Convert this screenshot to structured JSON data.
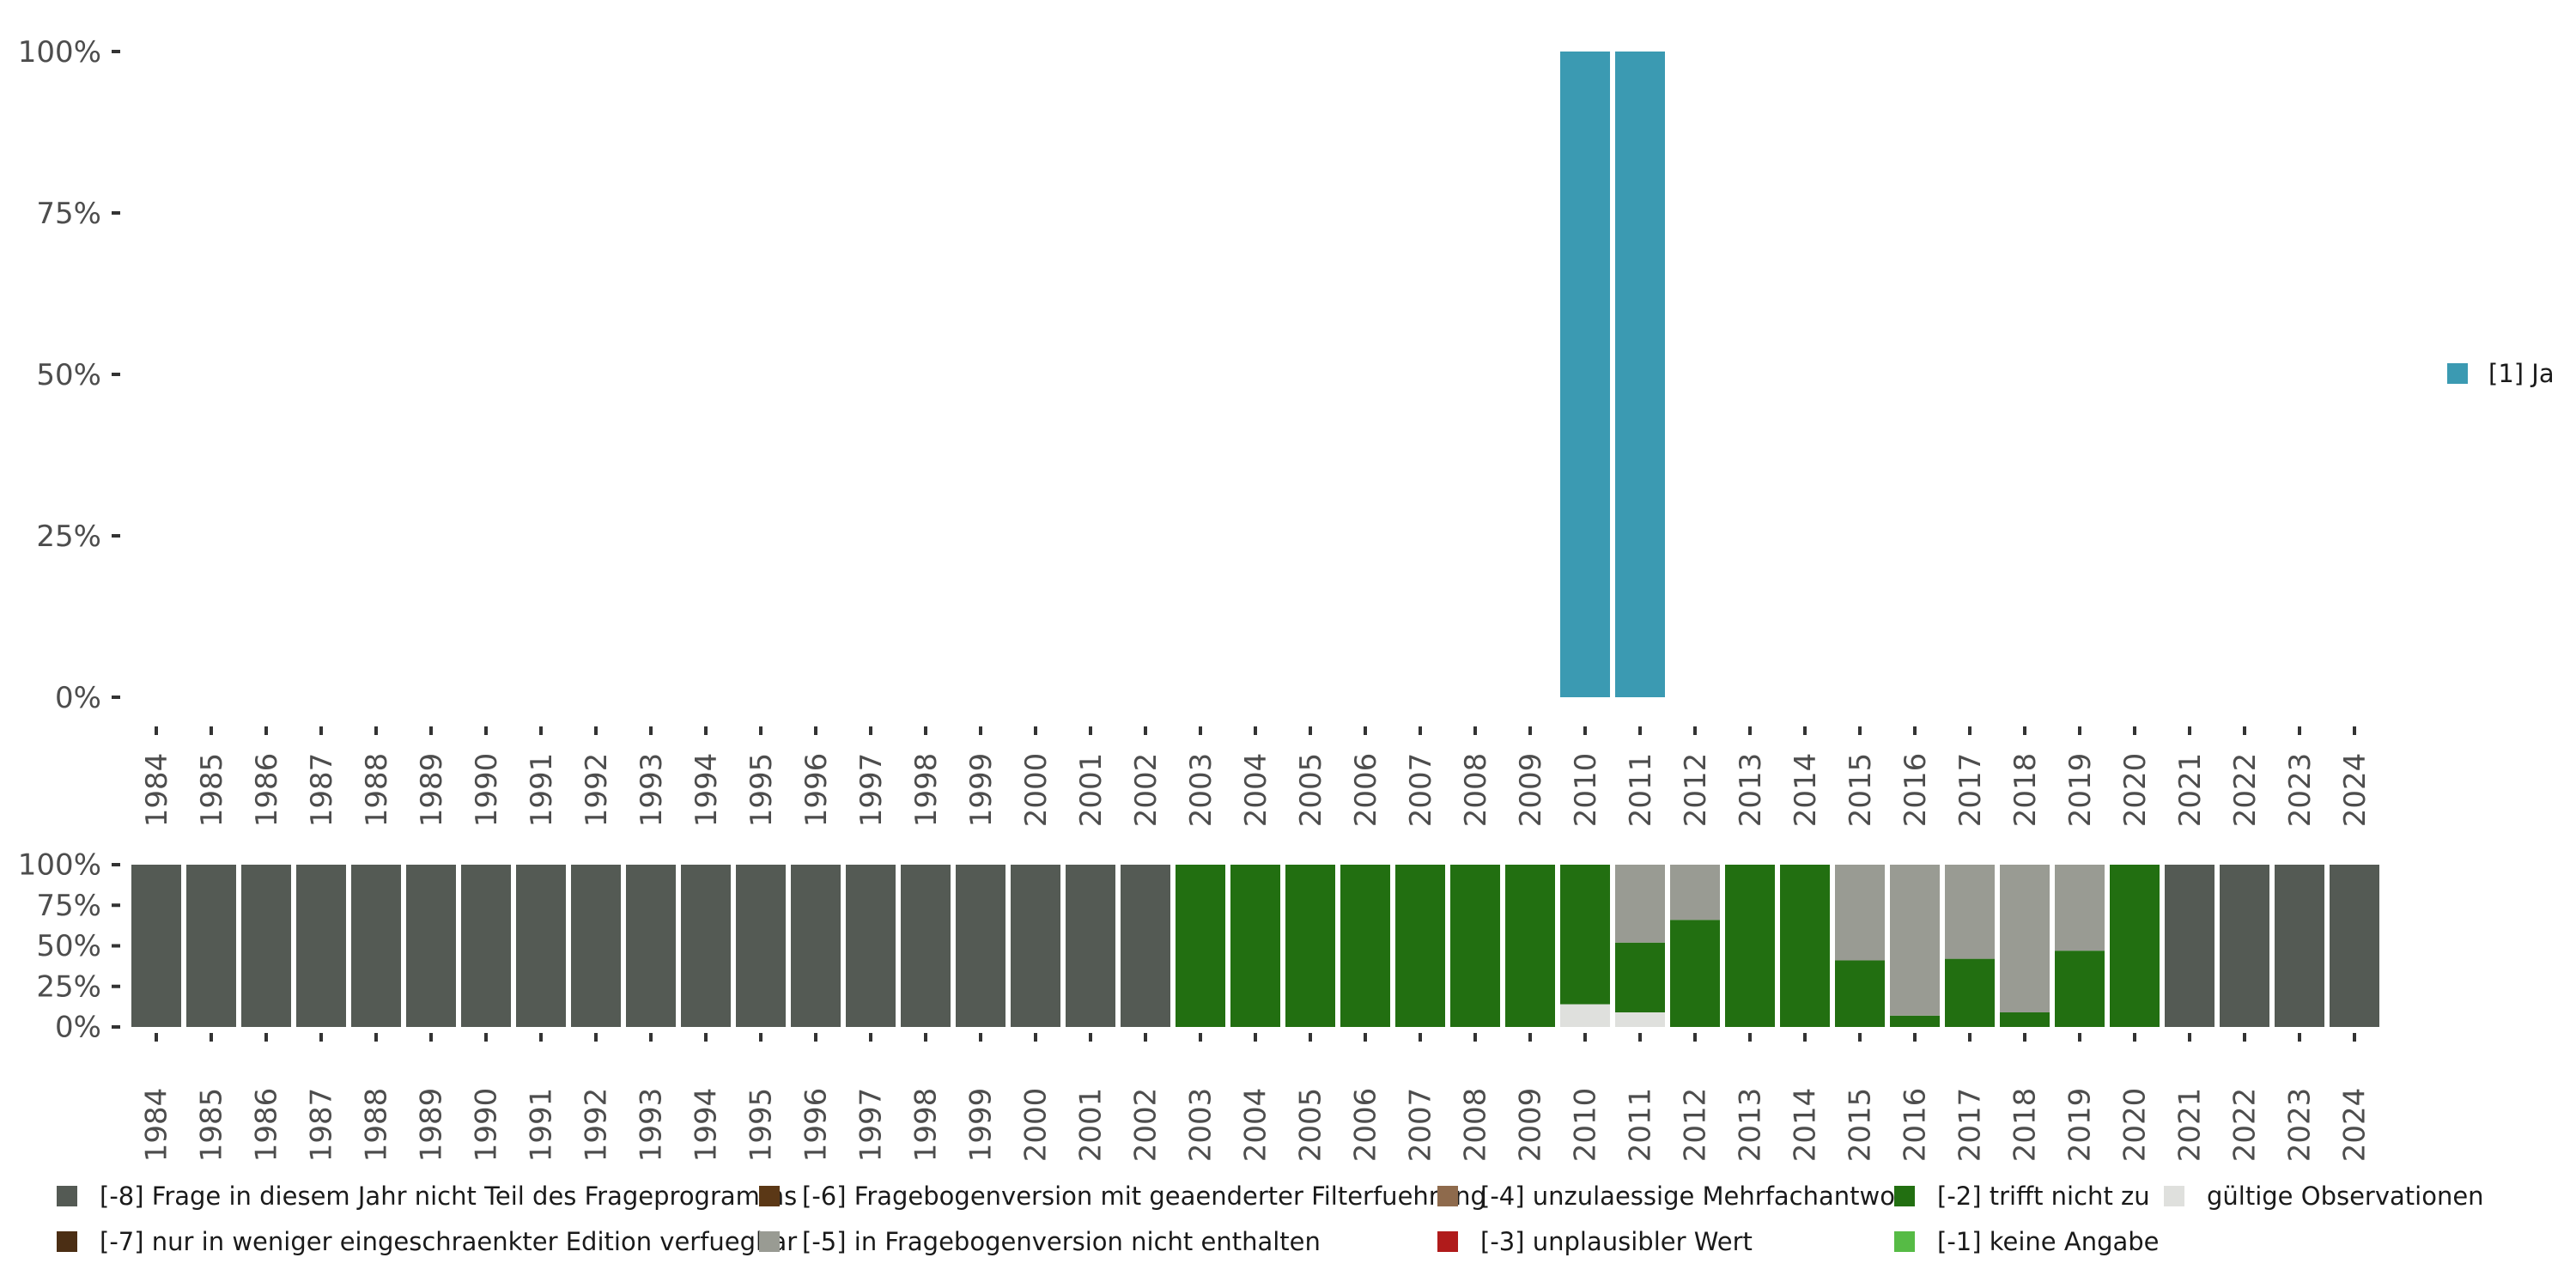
{
  "chart_data": [
    {
      "type": "bar",
      "stacked": true,
      "categories": [
        "1984",
        "1985",
        "1986",
        "1987",
        "1988",
        "1989",
        "1990",
        "1991",
        "1992",
        "1993",
        "1994",
        "1995",
        "1996",
        "1997",
        "1998",
        "1999",
        "2000",
        "2001",
        "2002",
        "2003",
        "2004",
        "2005",
        "2006",
        "2007",
        "2008",
        "2009",
        "2010",
        "2011",
        "2012",
        "2013",
        "2014",
        "2015",
        "2016",
        "2017",
        "2018",
        "2019",
        "2020",
        "2021",
        "2022",
        "2023",
        "2024"
      ],
      "ylim": [
        0,
        100
      ],
      "yticks": [
        "0%",
        "25%",
        "50%",
        "75%",
        "100%"
      ],
      "series": [
        {
          "name": "[1] Ja",
          "color": "#3b9ab2",
          "values": [
            0,
            0,
            0,
            0,
            0,
            0,
            0,
            0,
            0,
            0,
            0,
            0,
            0,
            0,
            0,
            0,
            0,
            0,
            0,
            0,
            0,
            0,
            0,
            0,
            0,
            0,
            100,
            100,
            0,
            0,
            0,
            0,
            0,
            0,
            0,
            0,
            0,
            0,
            0,
            0,
            0
          ]
        }
      ],
      "legend": [
        {
          "label": "[1] Ja",
          "color": "#3b9ab2"
        }
      ]
    },
    {
      "type": "bar",
      "stacked": true,
      "categories": [
        "1984",
        "1985",
        "1986",
        "1987",
        "1988",
        "1989",
        "1990",
        "1991",
        "1992",
        "1993",
        "1994",
        "1995",
        "1996",
        "1997",
        "1998",
        "1999",
        "2000",
        "2001",
        "2002",
        "2003",
        "2004",
        "2005",
        "2006",
        "2007",
        "2008",
        "2009",
        "2010",
        "2011",
        "2012",
        "2013",
        "2014",
        "2015",
        "2016",
        "2017",
        "2018",
        "2019",
        "2020",
        "2021",
        "2022",
        "2023",
        "2024"
      ],
      "ylim": [
        0,
        100
      ],
      "yticks": [
        "0%",
        "25%",
        "50%",
        "75%",
        "100%"
      ],
      "series": [
        {
          "name": "gültige Observationen",
          "color": "#dfe0dd",
          "values": [
            0,
            0,
            0,
            0,
            0,
            0,
            0,
            0,
            0,
            0,
            0,
            0,
            0,
            0,
            0,
            0,
            0,
            0,
            0,
            0,
            0,
            0,
            0,
            0,
            0,
            0,
            14,
            9,
            0,
            0,
            0,
            0,
            0,
            0,
            0,
            0,
            0,
            0,
            0,
            0,
            0
          ]
        },
        {
          "name": "[-2] trifft nicht zu",
          "color": "#226f11",
          "values": [
            0,
            0,
            0,
            0,
            0,
            0,
            0,
            0,
            0,
            0,
            0,
            0,
            0,
            0,
            0,
            0,
            0,
            0,
            0,
            100,
            100,
            100,
            100,
            100,
            100,
            100,
            86,
            43,
            66,
            100,
            100,
            41,
            7,
            42,
            9,
            47,
            100,
            0,
            0,
            0,
            0
          ]
        },
        {
          "name": "[-5] in Fragebogenversion nicht enthalten",
          "color": "#999b93",
          "values": [
            0,
            0,
            0,
            0,
            0,
            0,
            0,
            0,
            0,
            0,
            0,
            0,
            0,
            0,
            0,
            0,
            0,
            0,
            0,
            0,
            0,
            0,
            0,
            0,
            0,
            0,
            0,
            48,
            34,
            0,
            0,
            59,
            93,
            58,
            91,
            53,
            0,
            0,
            0,
            0,
            0
          ]
        },
        {
          "name": "[-8] Frage in diesem Jahr nicht Teil des Frageprogramms",
          "color": "#545a54",
          "values": [
            100,
            100,
            100,
            100,
            100,
            100,
            100,
            100,
            100,
            100,
            100,
            100,
            100,
            100,
            100,
            100,
            100,
            100,
            100,
            0,
            0,
            0,
            0,
            0,
            0,
            0,
            0,
            0,
            0,
            0,
            0,
            0,
            0,
            0,
            0,
            0,
            0,
            100,
            100,
            100,
            100
          ]
        }
      ],
      "legend": [
        {
          "label": "[-8] Frage in diesem Jahr nicht Teil des Frageprogramms",
          "color": "#545a54"
        },
        {
          "label": "[-7] nur in weniger eingeschraenkter Edition verfuegbar",
          "color": "#4b2e14"
        },
        {
          "label": "[-6] Fragebogenversion mit geaenderter Filterfuehrung",
          "color": "#5b3816"
        },
        {
          "label": "[-5] in Fragebogenversion nicht enthalten",
          "color": "#999b93"
        },
        {
          "label": "[-4] unzulaessige Mehrfachantwort",
          "color": "#8e6a4c"
        },
        {
          "label": "[-3] unplausibler Wert",
          "color": "#b01b1b"
        },
        {
          "label": "[-2] trifft nicht zu",
          "color": "#226f11"
        },
        {
          "label": "[-1] keine Angabe",
          "color": "#56bb45"
        },
        {
          "label": "gültige Observationen",
          "color": "#dfe0dd"
        }
      ]
    }
  ]
}
